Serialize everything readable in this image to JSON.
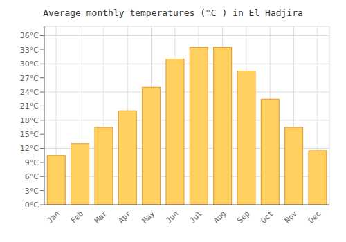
{
  "chart_data": {
    "type": "bar",
    "title": "Average monthly temperatures (°C ) in El Hadjira",
    "categories": [
      "Jan",
      "Feb",
      "Mar",
      "Apr",
      "May",
      "Jun",
      "Jul",
      "Aug",
      "Sep",
      "Oct",
      "Nov",
      "Dec"
    ],
    "values": [
      10.5,
      13.0,
      16.5,
      20.0,
      25.0,
      31.0,
      33.5,
      33.5,
      28.5,
      22.5,
      16.5,
      11.5
    ],
    "color": "#FFD060",
    "ylim": [
      0,
      38
    ],
    "yticks": [
      {
        "value": 0,
        "label": "0°C"
      },
      {
        "value": 3,
        "label": "3°C"
      },
      {
        "value": 6,
        "label": "6°C"
      },
      {
        "value": 9,
        "label": "9°C"
      },
      {
        "value": 12,
        "label": "12°C"
      },
      {
        "value": 15,
        "label": "15°C"
      },
      {
        "value": 18,
        "label": "18°C"
      },
      {
        "value": 21,
        "label": "21°C"
      },
      {
        "value": 24,
        "label": "24°C"
      },
      {
        "value": 27,
        "label": "27°C"
      },
      {
        "value": 30,
        "label": "30°C"
      },
      {
        "value": 33,
        "label": "33°C"
      },
      {
        "value": 36,
        "label": "36°C"
      }
    ],
    "grid": true
  }
}
